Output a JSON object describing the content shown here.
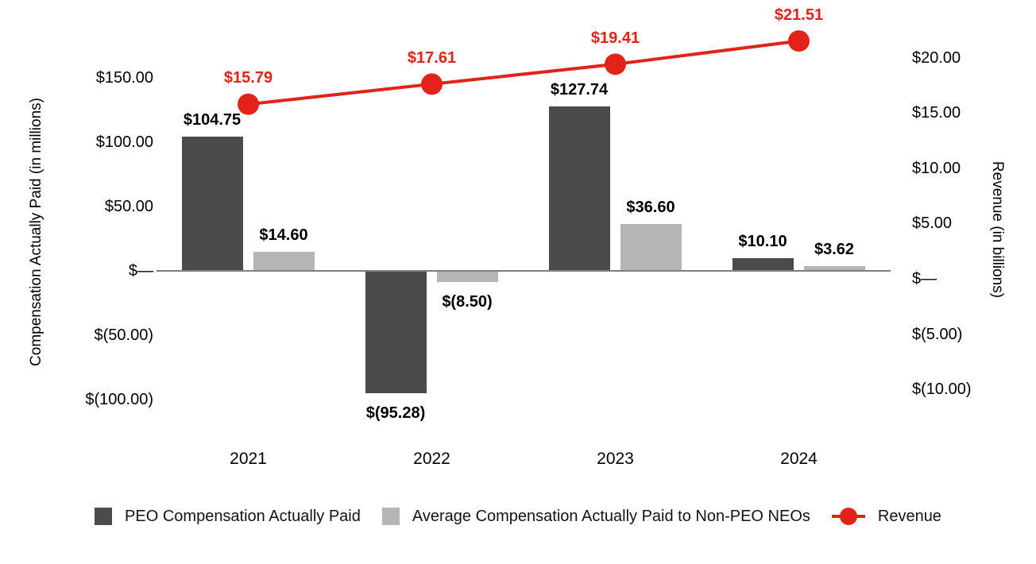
{
  "chart_data": {
    "type": "bar+line",
    "title": "",
    "categories": [
      "2021",
      "2022",
      "2023",
      "2024"
    ],
    "series": [
      {
        "name": "PEO Compensation Actually Paid",
        "type": "bar",
        "axis": "left",
        "color": "#4a4b4d",
        "values": [
          104.75,
          -95.28,
          127.74,
          10.1
        ],
        "labels": [
          "$104.75",
          "$(95.28)",
          "$127.74",
          "$10.10"
        ]
      },
      {
        "name": "Average Compensation Actually Paid to Non-PEO NEOs",
        "type": "bar",
        "axis": "left",
        "color": "#b5b5b5",
        "values": [
          14.6,
          -8.5,
          36.6,
          3.62
        ],
        "labels": [
          "$14.60",
          "$(8.50)",
          "$36.60",
          "$3.62"
        ]
      },
      {
        "name": "Revenue",
        "type": "line",
        "axis": "right",
        "color": "#e2231a",
        "values": [
          15.79,
          17.61,
          19.41,
          21.51
        ],
        "labels": [
          "$15.79",
          "$17.61",
          "$19.41",
          "$21.51"
        ]
      }
    ],
    "left_axis": {
      "title": "Compensation Actually Paid (in millions)",
      "range": [
        -125,
        175
      ],
      "ticks": [
        {
          "value": 150,
          "label": "$150.00"
        },
        {
          "value": 100,
          "label": "$100.00"
        },
        {
          "value": 50,
          "label": "$50.00"
        },
        {
          "value": 0,
          "label": "$—"
        },
        {
          "value": -50,
          "label": "$(50.00)"
        },
        {
          "value": -100,
          "label": "$(100.00)"
        }
      ]
    },
    "right_axis": {
      "title": "Revenue (in billions)",
      "range": [
        -12.5,
        25
      ],
      "ticks": [
        {
          "value": 20,
          "label": "$20.00"
        },
        {
          "value": 15,
          "label": "$15.00"
        },
        {
          "value": 10,
          "label": "$10.00"
        },
        {
          "value": 5,
          "label": "$5.00"
        },
        {
          "value": 0,
          "label": "$—"
        },
        {
          "value": -5,
          "label": "$(5.00)"
        },
        {
          "value": -10,
          "label": "$(10.00)"
        }
      ]
    },
    "grid": false,
    "legend_position": "bottom",
    "legend": [
      {
        "swatch": "dark-square",
        "label": "PEO Compensation Actually Paid",
        "color": "#4a4b4d"
      },
      {
        "swatch": "light-square",
        "label": "Average Compensation Actually Paid to Non-PEO NEOs",
        "color": "#b5b5b5"
      },
      {
        "swatch": "line-dot",
        "label": "Revenue",
        "color": "#e2231a"
      }
    ],
    "axis_line_color": "#7f7f7f"
  }
}
